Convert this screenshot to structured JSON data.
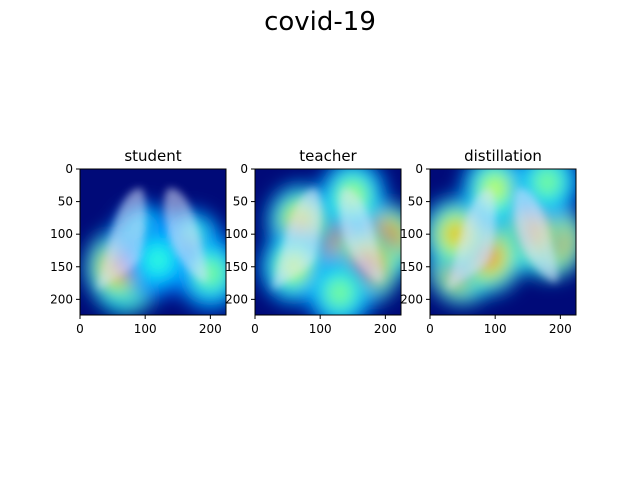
{
  "suptitle": "covid-19",
  "chart_data": [
    {
      "type": "heatmap",
      "title": "student",
      "xlim": [
        0,
        224
      ],
      "ylim": [
        224,
        0
      ],
      "xticks": [
        0,
        100,
        200
      ],
      "yticks": [
        0,
        50,
        100,
        150,
        200
      ],
      "colormap": "jet",
      "hotspots": [
        {
          "x": 70,
          "y": 165,
          "level": 1.0
        },
        {
          "x": 60,
          "y": 150,
          "level": 0.8
        },
        {
          "x": 100,
          "y": 110,
          "level": 0.45
        },
        {
          "x": 170,
          "y": 120,
          "level": 0.5
        },
        {
          "x": 200,
          "y": 160,
          "level": 0.45
        },
        {
          "x": 120,
          "y": 140,
          "level": 0.35
        }
      ]
    },
    {
      "type": "heatmap",
      "title": "teacher",
      "xlim": [
        0,
        224
      ],
      "ylim": [
        224,
        0
      ],
      "xticks": [
        0,
        100,
        200
      ],
      "yticks": [
        0,
        50,
        100,
        150,
        200
      ],
      "colormap": "jet",
      "hotspots": [
        {
          "x": 110,
          "y": 100,
          "level": 1.0
        },
        {
          "x": 200,
          "y": 110,
          "level": 0.95
        },
        {
          "x": 170,
          "y": 150,
          "level": 0.9
        },
        {
          "x": 70,
          "y": 80,
          "level": 0.65
        },
        {
          "x": 150,
          "y": 40,
          "level": 0.5
        },
        {
          "x": 60,
          "y": 150,
          "level": 0.55
        },
        {
          "x": 130,
          "y": 190,
          "level": 0.45
        }
      ]
    },
    {
      "type": "heatmap",
      "title": "distillation",
      "xlim": [
        0,
        224
      ],
      "ylim": [
        224,
        0
      ],
      "xticks": [
        0,
        100,
        200
      ],
      "yticks": [
        0,
        50,
        100,
        150,
        200
      ],
      "colormap": "jet",
      "hotspots": [
        {
          "x": 185,
          "y": 110,
          "level": 1.0
        },
        {
          "x": 150,
          "y": 100,
          "level": 0.85
        },
        {
          "x": 100,
          "y": 115,
          "level": 0.95
        },
        {
          "x": 50,
          "y": 150,
          "level": 0.95
        },
        {
          "x": 90,
          "y": 135,
          "level": 0.8
        },
        {
          "x": 40,
          "y": 100,
          "level": 0.7
        },
        {
          "x": 100,
          "y": 30,
          "level": 0.55
        },
        {
          "x": 180,
          "y": 20,
          "level": 0.45
        }
      ]
    }
  ]
}
